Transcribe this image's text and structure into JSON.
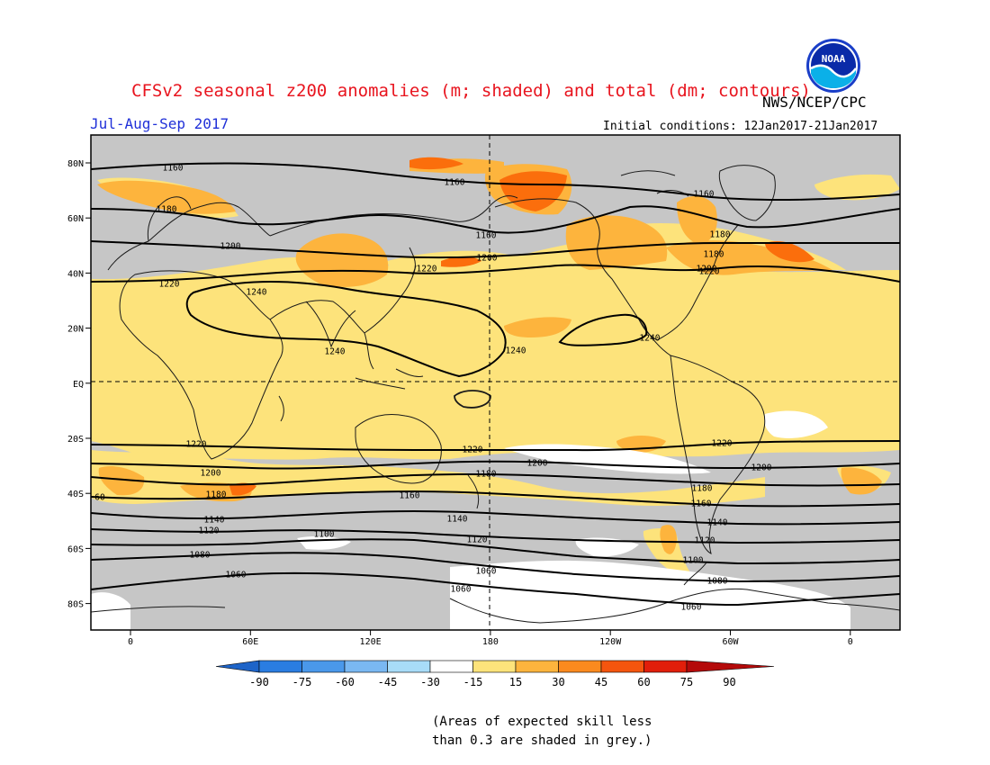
{
  "header": {
    "title": "CFSv2 seasonal z200 anomalies (m; shaded) and total (dm; contours)",
    "season": "Jul-Aug-Sep 2017",
    "agency": "NWS/NCEP/CPC",
    "initial_conditions": "Initial conditions: 12Jan2017-21Jan2017",
    "logo_text": "NOAA"
  },
  "map": {
    "lat_labels": [
      "80N",
      "60N",
      "40N",
      "20N",
      "EQ",
      "20S",
      "40S",
      "60S",
      "80S"
    ],
    "lon_labels": [
      "0",
      "60E",
      "120E",
      "180",
      "120W",
      "60W",
      "0"
    ],
    "contour_labels": [
      "1160",
      "1160",
      "1160",
      "1180",
      "1160",
      "1180",
      "1200",
      "1180",
      "1220",
      "1200",
      "1200",
      "1220",
      "1220",
      "1240",
      "1240",
      "1240",
      "1240",
      "1220",
      "1220",
      "1220",
      "1200",
      "1200",
      "1200",
      "1180",
      "1180",
      "1160",
      "1160",
      "1180",
      "60",
      "1140",
      "1140",
      "1140",
      "1120",
      "1120",
      "1120",
      "1100",
      "1100",
      "1080",
      "1060",
      "1080",
      "1060",
      "1060",
      "1060"
    ],
    "colors": {
      "grey_low_skill": "#c6c6c6",
      "ocean_none": "#ffffff",
      "pos_15_30": "#fde37b",
      "pos_30_45": "#fdb43d",
      "pos_45_60": "#fb6e0c",
      "pos_60_75": "#f01e0a",
      "pos_75_90": "#c80a0a"
    }
  },
  "colorbar": {
    "levels": [
      "-90",
      "-75",
      "-60",
      "-45",
      "-30",
      "-15",
      "15",
      "30",
      "45",
      "60",
      "75",
      "90"
    ],
    "colors": [
      "#1e64c8",
      "#2a7de1",
      "#4a98ea",
      "#7ab8f2",
      "#a8dcf8",
      "#ffffff",
      "#fde37b",
      "#fdb43d",
      "#fb8a1e",
      "#f4550e",
      "#e11e0a",
      "#b40a0a"
    ]
  },
  "note": {
    "line1": "(Areas of expected skill less",
    "line2": "than 0.3 are shaded in grey.)"
  }
}
